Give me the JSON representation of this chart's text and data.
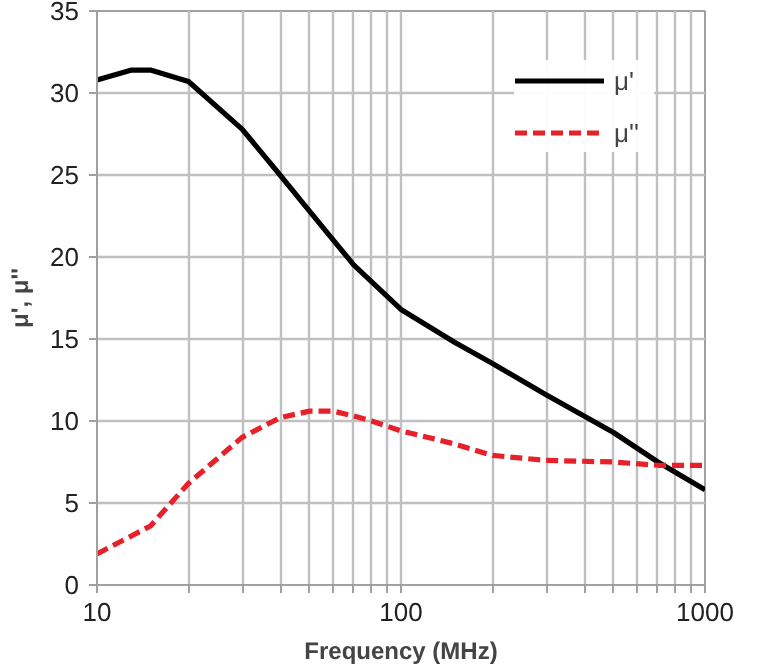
{
  "chart_data": {
    "type": "line",
    "xlabel": "Frequency (MHz)",
    "ylabel": "μ', μ''",
    "log": "x",
    "grid": true,
    "legend": "top right",
    "marker": "none",
    "xlim": [
      10,
      1000
    ],
    "ylim": [
      0,
      35
    ],
    "xticks": [
      10,
      {
        "value": 20,
        "label": null
      },
      {
        "value": 30,
        "label": null
      },
      {
        "value": 40,
        "label": null
      },
      {
        "value": 50,
        "label": null
      },
      {
        "value": 60,
        "label": null
      },
      {
        "value": 70,
        "label": null
      },
      {
        "value": 80,
        "label": null
      },
      {
        "value": 90,
        "label": null
      },
      100,
      {
        "value": 200,
        "label": null
      },
      {
        "value": 300,
        "label": null
      },
      {
        "value": 400,
        "label": null
      },
      {
        "value": 500,
        "label": null
      },
      {
        "value": 600,
        "label": null
      },
      {
        "value": 700,
        "label": null
      },
      {
        "value": 800,
        "label": null
      },
      {
        "value": 900,
        "label": null
      },
      1000
    ],
    "yticks": [
      0,
      5,
      10,
      15,
      20,
      25,
      30,
      35
    ],
    "series": [
      {
        "name": "μ'",
        "color": "#000000",
        "line_style": "solid",
        "x": [
          10,
          13,
          15,
          20,
          30,
          40,
          50,
          70,
          100,
          150,
          200,
          300,
          400,
          500,
          700,
          1000
        ],
        "values": [
          30.8,
          31.4,
          31.4,
          30.7,
          27.8,
          25,
          22.8,
          19.5,
          16.8,
          14.8,
          13.5,
          11.6,
          10.3,
          9.3,
          7.5,
          5.8
        ]
      },
      {
        "name": "μ''",
        "color": "#e8202a",
        "line_style": "dashed",
        "x": [
          10,
          15,
          20,
          30,
          40,
          50,
          60,
          70,
          80,
          100,
          150,
          200,
          300,
          500,
          700,
          1000
        ],
        "values": [
          1.9,
          3.6,
          6.2,
          9.0,
          10.2,
          10.6,
          10.6,
          10.3,
          10.0,
          9.4,
          8.6,
          7.9,
          7.6,
          7.5,
          7.3,
          7.3
        ]
      }
    ]
  }
}
